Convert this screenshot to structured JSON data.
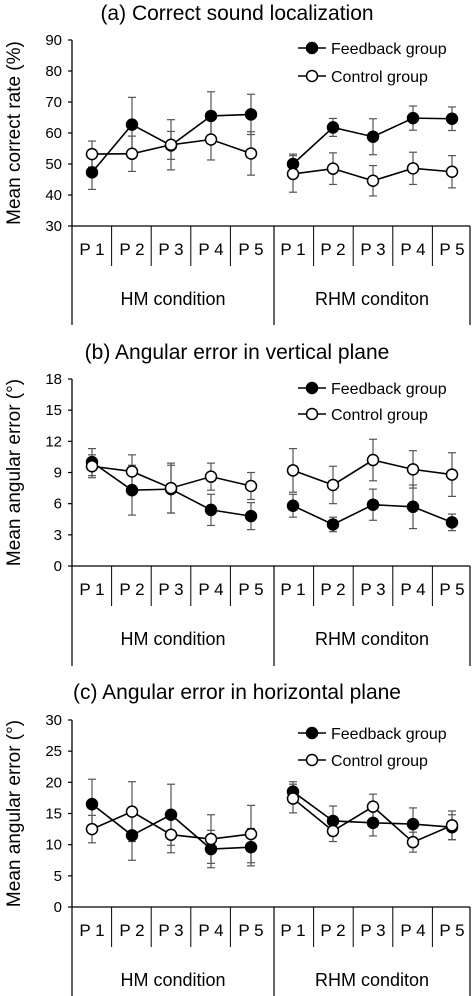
{
  "chart_data": [
    {
      "type": "line",
      "title": "(a) Correct sound localization",
      "ylabel": "Mean correct rate (%)",
      "ylim": [
        30,
        90
      ],
      "yticks": [
        30,
        40,
        50,
        60,
        70,
        80,
        90
      ],
      "legend_position": "top-right",
      "conditions": [
        {
          "name": "HM condition",
          "categories": [
            "P 1",
            "P 2",
            "P 3",
            "P 4",
            "P 5"
          ]
        },
        {
          "name": "RHM conditon",
          "categories": [
            "P 1",
            "P 2",
            "P 3",
            "P 4",
            "P 5"
          ]
        }
      ],
      "series": [
        {
          "name": "Feedback group",
          "marker": "filled-circle",
          "values": [
            [
              47.3,
              62.7,
              56.0,
              65.5,
              66.0
            ],
            [
              50.0,
              61.8,
              58.8,
              64.8,
              64.6
            ]
          ],
          "errors": [
            [
              5.5,
              8.8,
              4.5,
              7.8,
              6.5
            ],
            [
              3.2,
              2.9,
              5.8,
              3.9,
              3.8
            ]
          ]
        },
        {
          "name": "Control group",
          "marker": "open-circle",
          "values": [
            [
              53.2,
              53.3,
              56.2,
              57.9,
              53.4
            ],
            [
              46.8,
              48.5,
              44.6,
              48.6,
              47.5
            ]
          ],
          "errors": [
            [
              4.2,
              5.7,
              8.1,
              6.6,
              7.0
            ],
            [
              5.9,
              5.1,
              4.9,
              5.2,
              5.2
            ]
          ]
        }
      ]
    },
    {
      "type": "line",
      "title": "(b) Angular error in vertical plane",
      "ylabel": "Mean angular error (°)",
      "ylim": [
        0,
        18
      ],
      "yticks": [
        0,
        3,
        6,
        9,
        12,
        15,
        18
      ],
      "legend_position": "top-right",
      "conditions": [
        {
          "name": "HM condition",
          "categories": [
            "P 1",
            "P 2",
            "P 3",
            "P 4",
            "P 5"
          ]
        },
        {
          "name": "RHM conditon",
          "categories": [
            "P 1",
            "P 2",
            "P 3",
            "P 4",
            "P 5"
          ]
        }
      ],
      "series": [
        {
          "name": "Feedback group",
          "marker": "filled-circle",
          "values": [
            [
              10.0,
              7.3,
              7.4,
              5.4,
              4.8
            ],
            [
              5.8,
              4.0,
              5.9,
              5.7,
              4.2
            ]
          ],
          "errors": [
            [
              1.3,
              2.4,
              2.3,
              1.5,
              1.3
            ],
            [
              1.1,
              0.7,
              1.5,
              2.1,
              0.8
            ]
          ]
        },
        {
          "name": "Control group",
          "marker": "open-circle",
          "values": [
            [
              9.6,
              9.1,
              7.5,
              8.6,
              7.7
            ],
            [
              9.2,
              7.8,
              10.2,
              9.3,
              8.8
            ]
          ],
          "errors": [
            [
              1.1,
              1.6,
              2.4,
              1.3,
              1.3
            ],
            [
              2.1,
              1.8,
              2.0,
              1.8,
              2.1
            ]
          ]
        }
      ]
    },
    {
      "type": "line",
      "title": "(c) Angular error in horizontal plane",
      "ylabel": "Mean angular error (°)",
      "ylim": [
        0,
        30
      ],
      "yticks": [
        0,
        5,
        10,
        15,
        20,
        25,
        30
      ],
      "legend_position": "top-right",
      "conditions": [
        {
          "name": "HM condition",
          "categories": [
            "P 1",
            "P 2",
            "P 3",
            "P 4",
            "P 5"
          ]
        },
        {
          "name": "RHM conditon",
          "categories": [
            "P 1",
            "P 2",
            "P 3",
            "P 4",
            "P 5"
          ]
        }
      ],
      "series": [
        {
          "name": "Feedback group",
          "marker": "filled-circle",
          "values": [
            [
              16.5,
              11.5,
              14.8,
              9.3,
              9.6
            ],
            [
              18.5,
              13.8,
              13.5,
              13.3,
              12.8
            ]
          ],
          "errors": [
            [
              4.0,
              4.0,
              4.9,
              3.0,
              3.0
            ],
            [
              1.6,
              2.4,
              2.1,
              2.6,
              2.0
            ]
          ]
        },
        {
          "name": "Control group",
          "marker": "open-circle",
          "values": [
            [
              12.5,
              15.3,
              11.6,
              10.9,
              11.7
            ],
            [
              17.4,
              12.2,
              16.1,
              10.4,
              13.1
            ]
          ],
          "errors": [
            [
              2.2,
              4.8,
              2.9,
              3.9,
              4.6
            ],
            [
              2.3,
              1.7,
              2.0,
              1.6,
              2.3
            ]
          ]
        }
      ]
    }
  ]
}
